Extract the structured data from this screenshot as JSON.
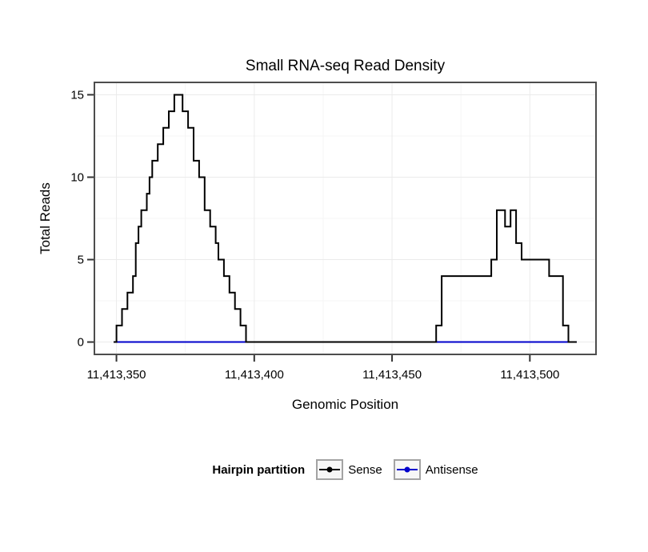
{
  "chart_data": {
    "type": "line",
    "line_style": "step",
    "title": "Small RNA-seq Read Density",
    "xlabel": "Genomic Position",
    "ylabel": "Total Reads",
    "xlim": [
      11413342,
      11413524
    ],
    "ylim": [
      -0.75,
      15.75
    ],
    "x_ticks": [
      {
        "value": 11413350,
        "label": "11,413,350"
      },
      {
        "value": 11413400,
        "label": "11,413,400"
      },
      {
        "value": 11413450,
        "label": "11,413,450"
      },
      {
        "value": 11413500,
        "label": "11,413,500"
      }
    ],
    "y_ticks": [
      {
        "value": 0,
        "label": "0"
      },
      {
        "value": 5,
        "label": "5"
      },
      {
        "value": 10,
        "label": "10"
      },
      {
        "value": 15,
        "label": "15"
      }
    ],
    "grid": {
      "x_major": [
        11413350,
        11413400,
        11413450,
        11413500
      ],
      "x_minor": [
        11413375,
        11413425,
        11413475
      ],
      "y_major": [
        0,
        5,
        10,
        15
      ],
      "y_minor": [
        2.5,
        7.5,
        12.5
      ],
      "major_color": "#EBEBEB",
      "minor_color": "#F5F5F5"
    },
    "panel": {
      "background": "#FFFFFF",
      "border_color": "#4D4D4D",
      "tick_color": "#333333"
    },
    "series": [
      {
        "name": "Sense",
        "color": "#000000",
        "points": [
          [
            11413349,
            0
          ],
          [
            11413350,
            1
          ],
          [
            11413352,
            2
          ],
          [
            11413354,
            3
          ],
          [
            11413356,
            4
          ],
          [
            11413357,
            6
          ],
          [
            11413358,
            7
          ],
          [
            11413359,
            8
          ],
          [
            11413361,
            9
          ],
          [
            11413362,
            10
          ],
          [
            11413363,
            11
          ],
          [
            11413365,
            12
          ],
          [
            11413367,
            13
          ],
          [
            11413369,
            14
          ],
          [
            11413371,
            15
          ],
          [
            11413374,
            14
          ],
          [
            11413376,
            13
          ],
          [
            11413378,
            11
          ],
          [
            11413380,
            10
          ],
          [
            11413382,
            8
          ],
          [
            11413384,
            7
          ],
          [
            11413386,
            6
          ],
          [
            11413387,
            5
          ],
          [
            11413389,
            4
          ],
          [
            11413391,
            3
          ],
          [
            11413393,
            2
          ],
          [
            11413395,
            1
          ],
          [
            11413397,
            0
          ],
          [
            11413466,
            1
          ],
          [
            11413468,
            4
          ],
          [
            11413486,
            5
          ],
          [
            11413488,
            8
          ],
          [
            11413491,
            7
          ],
          [
            11413493,
            8
          ],
          [
            11413495,
            6
          ],
          [
            11413497,
            5
          ],
          [
            11413507,
            4
          ],
          [
            11413512,
            1
          ],
          [
            11413514,
            0
          ],
          [
            11413517,
            0
          ]
        ]
      },
      {
        "name": "Antisense",
        "color": "#0000CC",
        "points": [
          [
            11413349,
            0
          ],
          [
            11413517,
            0
          ]
        ]
      }
    ]
  },
  "legend": {
    "title": "Hairpin partition",
    "items": [
      {
        "label": "Sense",
        "color": "#000000"
      },
      {
        "label": "Antisense",
        "color": "#0000CC"
      }
    ]
  }
}
